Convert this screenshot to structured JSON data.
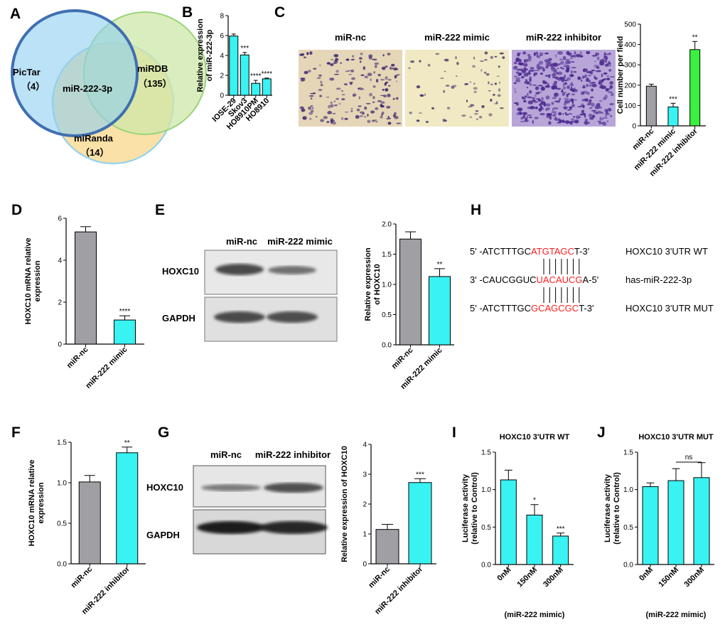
{
  "panel_letters": {
    "A": "A",
    "B": "B",
    "C": "C",
    "D": "D",
    "E": "E",
    "F": "F",
    "G": "G",
    "H": "H",
    "I": "I",
    "J": "J"
  },
  "colors": {
    "gray": "#a0a0a4",
    "cyan": "#39f2f2",
    "green": "#39f23e",
    "red": "#ff1e1e",
    "venn_pictar": "#8ecff0",
    "venn_mirdb": "#cde7a8",
    "venn_miranda": "#f8dc98"
  },
  "venn": {
    "pictar": {
      "name": "PicTar",
      "count": "（4）"
    },
    "mirdb": {
      "name": "miRDB",
      "count": "（135）"
    },
    "miranda": {
      "name": "miRanda",
      "count": "（14）"
    },
    "center": "miR-222-3p"
  },
  "micrograph_labels": [
    "miR-nc",
    "miR-222 mimic",
    "miR-222 inhibitor"
  ],
  "blot_E": {
    "lanes": [
      "miR-nc",
      "miR-222 mimic"
    ],
    "rows": [
      "HOXC10",
      "GAPDH"
    ]
  },
  "blot_G": {
    "lanes": [
      "miR-nc",
      "miR-222 inhibitor"
    ],
    "rows": [
      "HOXC10",
      "GAPDH"
    ]
  },
  "panel_H": {
    "rows": [
      {
        "prime": "5'",
        "pre": "-ATCTTTGC",
        "hl": "ATGTAGC",
        "post": "T-3'",
        "label": "HOXC10 3'UTR WT"
      },
      {
        "prime": "3'",
        "pre": "-CAUCGGUC",
        "hl": "UACAUCG",
        "post": "A-5'",
        "label": "has-miR-222-3p"
      },
      {
        "prime": "5'",
        "pre": "-ATCTTTGC",
        "hl": "GCAGCGC",
        "post": "T-3'",
        "label": "HOXC10 3'UTR MUT"
      }
    ]
  },
  "chart_data": [
    {
      "id": "B",
      "type": "bar",
      "title": "",
      "categories": [
        "IOSE-29",
        "Skov3",
        "HO8910PM",
        "HO8910"
      ],
      "values": [
        5.95,
        4.05,
        1.2,
        1.65
      ],
      "errors": [
        0.2,
        0.25,
        0.3,
        0.08
      ],
      "significance": [
        "",
        "***",
        "****",
        "****"
      ],
      "ylabel": "Relative expression of miR-222-3p",
      "ylim": [
        0,
        8
      ],
      "yticks": [
        "0",
        "2",
        "4",
        "6",
        "8"
      ]
    },
    {
      "id": "C",
      "type": "bar",
      "title": "",
      "categories": [
        "miR-nc",
        "miR-222 mimic",
        "miR-222 inhibitor"
      ],
      "values": [
        195,
        93,
        375
      ],
      "errors": [
        10,
        18,
        40
      ],
      "significance": [
        "",
        "***",
        "**"
      ],
      "ylabel": "Cell number per field",
      "ylim": [
        0,
        500
      ],
      "yticks": [
        "0",
        "100",
        "200",
        "300",
        "400",
        "500"
      ]
    },
    {
      "id": "D",
      "type": "bar",
      "title": "",
      "categories": [
        "miR-nc",
        "miR-222 mimic"
      ],
      "values": [
        5.35,
        1.15
      ],
      "errors": [
        0.25,
        0.2
      ],
      "significance": [
        "",
        "****"
      ],
      "ylabel": "HOXC10 mRNA relative expression",
      "ylim": [
        0,
        6
      ],
      "yticks": [
        "0",
        "2",
        "4",
        "6"
      ]
    },
    {
      "id": "E",
      "type": "bar",
      "title": "",
      "categories": [
        "miR-nc",
        "miR-222 mimic"
      ],
      "values": [
        1.75,
        1.13
      ],
      "errors": [
        0.12,
        0.13
      ],
      "significance": [
        "",
        "**"
      ],
      "ylabel": "Relative expression of HOXC10",
      "ylim": [
        0,
        2.0
      ],
      "yticks": [
        "0.0",
        "0.5",
        "1.0",
        "1.5",
        "2.0"
      ]
    },
    {
      "id": "F",
      "type": "bar",
      "title": "",
      "categories": [
        "miR-nc",
        "miR-222 inhibitor"
      ],
      "values": [
        1.01,
        1.37
      ],
      "errors": [
        0.08,
        0.07
      ],
      "significance": [
        "",
        "**"
      ],
      "ylabel": "HOXC10 mRNA relative expression",
      "ylim": [
        0,
        1.5
      ],
      "yticks": [
        "0.0",
        "0.5",
        "1.0",
        "1.5"
      ]
    },
    {
      "id": "G",
      "type": "bar",
      "title": "",
      "categories": [
        "miR-nc",
        "miR-222 inhibitor"
      ],
      "values": [
        1.15,
        2.72
      ],
      "errors": [
        0.17,
        0.13
      ],
      "significance": [
        "",
        "***"
      ],
      "ylabel": "Relative expression of HOXC10",
      "ylim": [
        0,
        4
      ],
      "yticks": [
        "0",
        "1",
        "2",
        "3",
        "4"
      ]
    },
    {
      "id": "I",
      "type": "bar",
      "title": "HOXC10 3'UTR WT",
      "categories": [
        "0nM",
        "150nM",
        "300nM"
      ],
      "values": [
        1.13,
        0.66,
        0.38
      ],
      "errors": [
        0.13,
        0.14,
        0.04
      ],
      "significance": [
        "",
        "*",
        "***"
      ],
      "ylabel": "Luciferase activity (relative to Control)",
      "xlabel": "(miR-222 mimic)",
      "ylim": [
        0,
        1.5
      ],
      "yticks": [
        "0.0",
        "0.5",
        "1.0",
        "1.5"
      ]
    },
    {
      "id": "J",
      "type": "bar",
      "title": "HOXC10 3'UTR MUT",
      "categories": [
        "0nM",
        "150nM",
        "300nM"
      ],
      "values": [
        1.04,
        1.12,
        1.16
      ],
      "errors": [
        0.05,
        0.16,
        0.2
      ],
      "significance": [
        "",
        "",
        ""
      ],
      "ylabel": "Luciferase activity (relative to Control)",
      "xlabel": "(miR-222 mimic)",
      "ylim": [
        0,
        1.5
      ],
      "yticks": [
        "0.0",
        "0.5",
        "1.0",
        "1.5"
      ],
      "bracket_label": "ns"
    }
  ]
}
